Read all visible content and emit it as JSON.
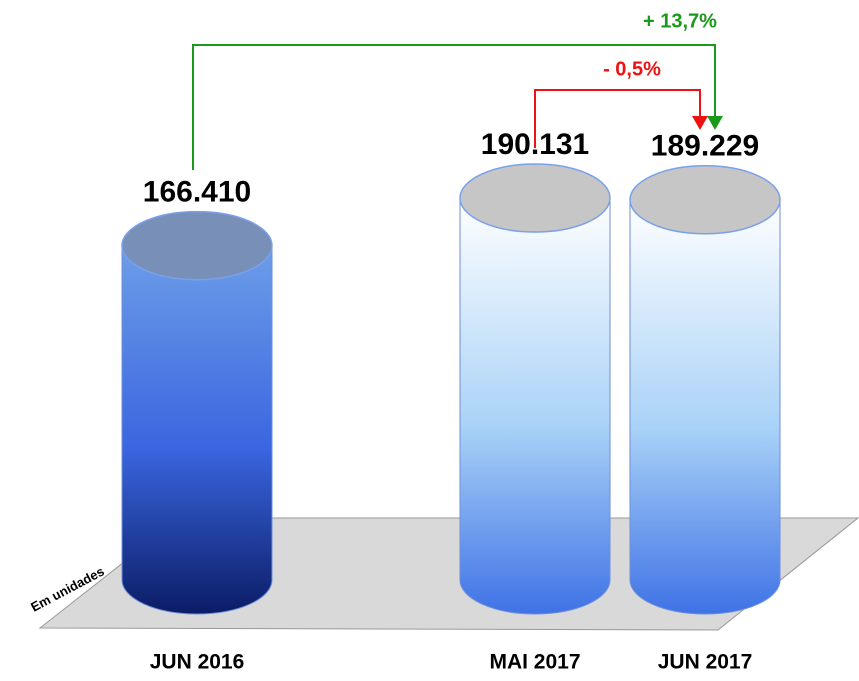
{
  "chart_data": {
    "type": "bar",
    "categories": [
      "JUN 2016",
      "MAI 2017",
      "JUN 2017"
    ],
    "values": [
      166410,
      190131,
      189229
    ],
    "value_labels": [
      "166.410",
      "190.131",
      "189.229"
    ],
    "colors": [
      [
        "#6d9ee8",
        "#0b1c66"
      ],
      [
        "#ffffff",
        "#3f72e6"
      ],
      [
        "#ffffff",
        "#3f72e6"
      ]
    ],
    "axis_label": "Em unidades",
    "annotations": [
      {
        "text": "+ 13,7%",
        "color": "#1a9a1a"
      },
      {
        "text": "- 0,5%",
        "color": "#ee1111"
      }
    ]
  }
}
